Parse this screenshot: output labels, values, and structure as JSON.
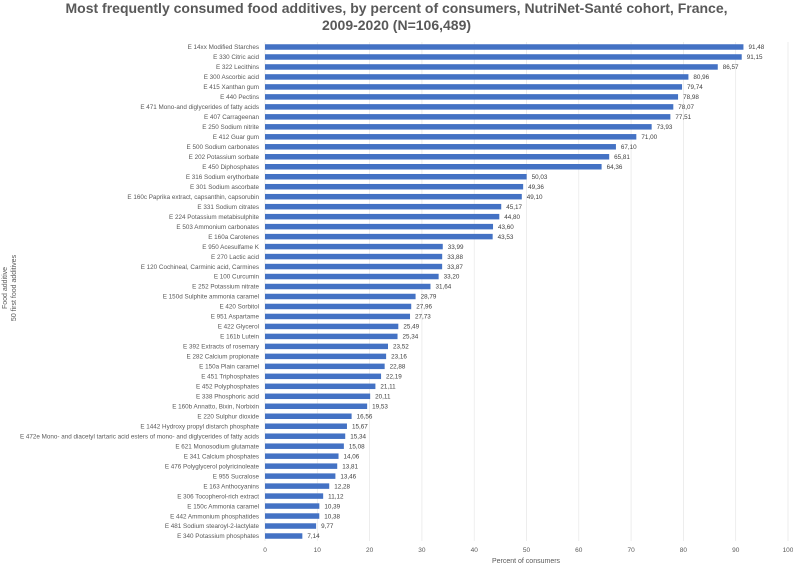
{
  "chart_data": {
    "type": "bar",
    "orientation": "horizontal",
    "title_lines": [
      "Most frequently consumed food additives, by percent of consumers, NutriNet-Santé cohort, France,",
      "2009-2020 (N=106,489)"
    ],
    "xlabel": "Percent of consumers",
    "ylabel_lines": [
      "Food additive",
      "50 first food additives"
    ],
    "xlim": [
      0,
      100
    ],
    "x_ticks": [
      "0",
      "10",
      "20",
      "30",
      "40",
      "50",
      "60",
      "70",
      "80",
      "90",
      "100"
    ],
    "grid": "vertical",
    "legend": "none",
    "bar_color": "#4472c4",
    "categories": [
      "E 14xx Modified Starches",
      "E 330 Citric acid",
      "E 322 Lecithins",
      "E 300 Ascorbic acid",
      "E 415 Xanthan gum",
      "E 440 Pectins",
      "E 471 Mono-and diglycerides of fatty acids",
      "E 407 Carrageenan",
      "E 250 Sodium nitrite",
      "E 412 Guar gum",
      "E 500 Sodium carbonates",
      "E 202 Potassium sorbate",
      "E 450 Diphosphates",
      "E 316 Sodium erythorbate",
      "E 301 Sodium ascorbate",
      "E 160c Paprika extract, capsanthin, capsorubin",
      "E 331 Sodium citrates",
      "E 224 Potassium metabisulphite",
      "E 503 Ammonium carbonates",
      "E 160a Carotenes",
      "E 950 Acesulfame K",
      "E 270 Lactic acid",
      "E 120 Cochineal, Carminic acid, Carmines",
      "E 100 Curcumin",
      "E 252 Potassium nitrate",
      "E 150d Sulphite ammonia caramel",
      "E 420 Sorbitol",
      "E 951 Aspartame",
      "E 422 Glycerol",
      "E 161b Lutein",
      "E 392 Extracts of rosemary",
      "E 282 Calcium propionate",
      "E 150a Plain caramel",
      "E 451 Triphosphates",
      "E 452 Polyphosphates",
      "E 338 Phosphoric acid",
      "E 160b Annatto, Bixin, Norbixin",
      "E 220 Sulphur dioxide",
      "E 1442 Hydroxy propyl distarch phosphate",
      "E 472e Mono- and diacetyl tartaric acid esters of mono- and diglycerides of fatty acids",
      "E 621 Monosodium glutamate",
      "E 341 Calcium phosphates",
      "E 476 Polyglycerol polyricinoleate",
      "E 955 Sucralose",
      "E 163 Anthocyanins",
      "E 306 Tocopherol-rich extract",
      "E 150c Ammonia caramel",
      "E 442 Ammonium phosphatides",
      "E 481 Sodium stearoyl-2-lactylate",
      "E 340 Potassium phosphates"
    ],
    "values": [
      91.48,
      91.15,
      86.57,
      80.96,
      79.74,
      78.98,
      78.07,
      77.51,
      73.93,
      71.0,
      67.1,
      65.81,
      64.36,
      50.03,
      49.36,
      49.1,
      45.17,
      44.8,
      43.6,
      43.53,
      33.99,
      33.88,
      33.87,
      33.2,
      31.64,
      28.79,
      27.96,
      27.73,
      25.49,
      25.34,
      23.52,
      23.16,
      22.88,
      22.19,
      21.11,
      20.11,
      19.53,
      16.56,
      15.67,
      15.34,
      15.08,
      14.06,
      13.81,
      13.46,
      12.28,
      11.12,
      10.39,
      10.38,
      9.77,
      7.14
    ],
    "value_labels": [
      "91,48",
      "91,15",
      "86,57",
      "80,96",
      "79,74",
      "78,98",
      "78,07",
      "77,51",
      "73,93",
      "71,00",
      "67,10",
      "65,81",
      "64,36",
      "50,03",
      "49,36",
      "49,10",
      "45,17",
      "44,80",
      "43,60",
      "43,53",
      "33,99",
      "33,88",
      "33,87",
      "33,20",
      "31,64",
      "28,79",
      "27,96",
      "27,73",
      "25,49",
      "25,34",
      "23,52",
      "23,16",
      "22,88",
      "22,19",
      "21,11",
      "20,11",
      "19,53",
      "16,56",
      "15,67",
      "15,34",
      "15,08",
      "14,06",
      "13,81",
      "13,46",
      "12,28",
      "11,12",
      "10,39",
      "10,38",
      "9,77",
      "7,14"
    ]
  }
}
